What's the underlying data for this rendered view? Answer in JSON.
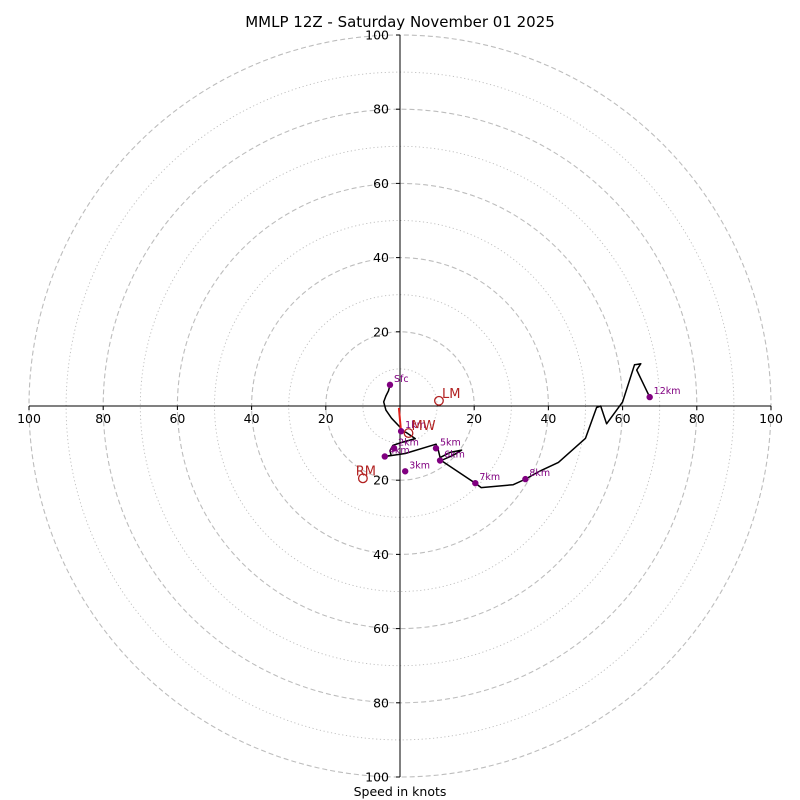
{
  "chart_data": {
    "type": "hodograph",
    "title": "MMLP 12Z - Saturday November 01 2025",
    "xlabel": "Speed in knots",
    "range": [
      -100,
      100
    ],
    "tick_labels": [
      {
        "value": -100,
        "text": "100"
      },
      {
        "value": -80,
        "text": "80"
      },
      {
        "value": -60,
        "text": "60"
      },
      {
        "value": -40,
        "text": "40"
      },
      {
        "value": -20,
        "text": "20"
      },
      {
        "value": 20,
        "text": "20"
      },
      {
        "value": 40,
        "text": "40"
      },
      {
        "value": 60,
        "text": "60"
      },
      {
        "value": 80,
        "text": "80"
      },
      {
        "value": 100,
        "text": "100"
      }
    ],
    "rings_major": [
      20,
      40,
      60,
      80,
      100
    ],
    "rings_minor": [
      10,
      30,
      50,
      70,
      90
    ],
    "trace": [
      {
        "u": -2.7,
        "v": 5.7
      },
      {
        "u": -3.1,
        "v": 4.1
      },
      {
        "u": -3.8,
        "v": 2.7
      },
      {
        "u": -4.4,
        "v": 1.1
      },
      {
        "u": -3.8,
        "v": -1.1
      },
      {
        "u": -2.3,
        "v": -3.3
      },
      {
        "u": 0.0,
        "v": -5.7
      },
      {
        "u": 0.5,
        "v": -6.8
      },
      {
        "u": 1.6,
        "v": -7.1
      },
      {
        "u": 4.1,
        "v": -8.8
      },
      {
        "u": 0.5,
        "v": -9.8
      },
      {
        "u": -1.9,
        "v": -10.6
      },
      {
        "u": -2.7,
        "v": -12.0
      },
      {
        "u": -2.4,
        "v": -13.3
      },
      {
        "u": -4.1,
        "v": -13.6
      },
      {
        "u": 1.4,
        "v": -12.8
      },
      {
        "u": 9.7,
        "v": -10.3
      },
      {
        "u": 10.3,
        "v": -11.8
      },
      {
        "u": 10.8,
        "v": -13.9
      },
      {
        "u": 13.5,
        "v": -12.5
      },
      {
        "u": 16.6,
        "v": -11.9
      },
      {
        "u": 14.3,
        "v": -13.3
      },
      {
        "u": 11.1,
        "v": -14.7
      },
      {
        "u": 20.3,
        "v": -20.8
      },
      {
        "u": 21.9,
        "v": -22.0
      },
      {
        "u": 30.5,
        "v": -21.2
      },
      {
        "u": 33.6,
        "v": -19.8
      },
      {
        "u": 37.8,
        "v": -17.5
      },
      {
        "u": 42.7,
        "v": -15.2
      },
      {
        "u": 50.0,
        "v": -8.7
      },
      {
        "u": 53.0,
        "v": -0.4
      },
      {
        "u": 54.1,
        "v": 0.0
      },
      {
        "u": 55.7,
        "v": -4.8
      },
      {
        "u": 60.0,
        "v": 1.1
      },
      {
        "u": 63.2,
        "v": 11.1
      },
      {
        "u": 64.9,
        "v": 11.4
      },
      {
        "u": 63.8,
        "v": 9.7
      },
      {
        "u": 67.3,
        "v": 2.4
      }
    ],
    "markers": [
      {
        "label": "Sfc",
        "u": -2.7,
        "v": 5.7
      },
      {
        "label": "1km",
        "u": 0.3,
        "v": -6.8
      },
      {
        "label": "2km",
        "u": -1.6,
        "v": -11.4
      },
      {
        "label": "3km",
        "u": 1.4,
        "v": -17.6
      },
      {
        "label": "4km",
        "u": -4.1,
        "v": -13.6
      },
      {
        "label": "5km",
        "u": 9.7,
        "v": -11.4
      },
      {
        "label": "6km",
        "u": 10.8,
        "v": -14.7
      },
      {
        "label": "7km",
        "u": 20.3,
        "v": -20.8
      },
      {
        "label": "8km",
        "u": 33.8,
        "v": -19.7
      },
      {
        "label": "12km",
        "u": 67.3,
        "v": 2.4
      }
    ],
    "storm_motion": [
      {
        "label": "LM",
        "u": 10.5,
        "v": 1.4
      },
      {
        "label": "RM",
        "u": -10.0,
        "v": -19.5
      },
      {
        "label": "MW",
        "u": 2.3,
        "v": -7.3
      }
    ],
    "bunkers_vector": {
      "u0": -0.3,
      "v0": -0.5,
      "u1": 0.3,
      "v1": -7.1
    },
    "colors": {
      "trace": "#000000",
      "markers": "#800080",
      "storm": "#b22222",
      "vector": "#e0201b",
      "grid": "#bdbdbd"
    }
  }
}
